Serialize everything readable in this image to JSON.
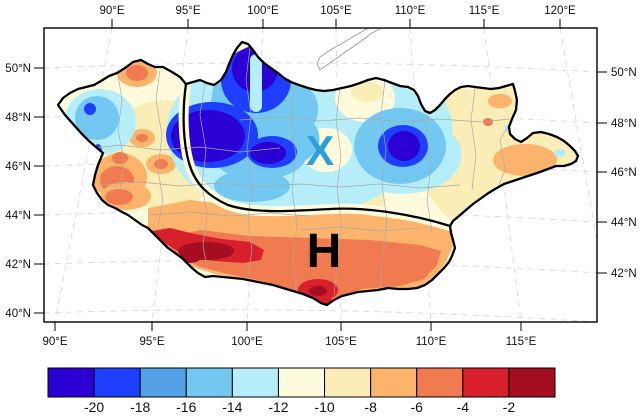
{
  "map": {
    "top_axis": [
      "90°E",
      "95°E",
      "100°E",
      "105°E",
      "110°E",
      "115°E",
      "120°E"
    ],
    "bottom_axis": [
      "90°E",
      "95°E",
      "100°E",
      "105°E",
      "110°E",
      "115°E"
    ],
    "left_axis": [
      "50°N",
      "48°N",
      "46°N",
      "44°N",
      "42°N",
      "40°N"
    ],
    "right_axis": [
      "50°N",
      "48°N",
      "46°N",
      "44°N",
      "42°N"
    ],
    "markers": [
      {
        "label": "X",
        "color": "#2D9FDB"
      },
      {
        "label": "H",
        "color": "#000000"
      }
    ]
  },
  "colorbar": {
    "tick_labels": [
      "-20",
      "-18",
      "-16",
      "-14",
      "-12",
      "-10",
      "-8",
      "-6",
      "-4",
      "-2"
    ],
    "colors": [
      "#2A00D5",
      "#1E3FFF",
      "#55A1E8",
      "#73C8F1",
      "#B5EEF9",
      "#FEFBDD",
      "#FAEDB5",
      "#FCB36B",
      "#F17B51",
      "#D7202C",
      "#A50D20"
    ]
  },
  "chart_data": {
    "type": "heatmap",
    "subtype": "filled-contour map of Mongolia with dashed lat/lon graticule",
    "title": "",
    "x_tick_labels_top": [
      "90°E",
      "95°E",
      "100°E",
      "105°E",
      "110°E",
      "115°E",
      "120°E"
    ],
    "x_tick_labels_bottom": [
      "90°E",
      "95°E",
      "100°E",
      "105°E",
      "110°E",
      "115°E"
    ],
    "y_tick_labels_left": [
      "50°N",
      "48°N",
      "46°N",
      "44°N",
      "42°N",
      "40°N"
    ],
    "y_tick_labels_right": [
      "50°N",
      "48°N",
      "46°N",
      "44°N",
      "42°N"
    ],
    "colorbar_levels": [
      -20,
      -18,
      -16,
      -14,
      -12,
      -10,
      -8,
      -6,
      -4,
      -2
    ],
    "colorbar_colors": [
      "#2A00D5",
      "#1E3FFF",
      "#55A1E8",
      "#73C8F1",
      "#B5EEF9",
      "#FEFBDD",
      "#FAEDB5",
      "#FCB36B",
      "#F17B51",
      "#D7202C",
      "#A50D20"
    ],
    "legend_position": "bottom",
    "grid": "dashed light-gray graticule",
    "annotations": [
      {
        "label": "X",
        "color": "#2D9FDB",
        "approx_lon": "104°E",
        "approx_lat": "46.5°N"
      },
      {
        "label": "H",
        "color": "#000000",
        "approx_lon": "104.5°E",
        "approx_lat": "42.5°N"
      }
    ],
    "features": [
      {
        "name": "front-line",
        "description": "thick black curve from northern border near 97°E sweeping south then east along ~44°N to the eastern border"
      },
      {
        "name": "cold-center",
        "approx": "97-101°E, 46-50°N",
        "level": "<= -20"
      },
      {
        "name": "cold-center-2",
        "approx": "107-109°E, 47-48°N",
        "level": "<= -20"
      },
      {
        "name": "cold-west-patch",
        "approx": "88-90°E, 48-49.5°N",
        "level": "-18 to -14"
      },
      {
        "name": "warm-band-south",
        "approx": "42-44°N across southern Mongolia",
        "level": "-8 to -4"
      },
      {
        "name": "warmest-core",
        "approx": "95-99°E, ~42.5°N",
        "level": "-4 to > -2"
      },
      {
        "name": "warm-patch-east",
        "approx": "114-117°E, 46-47°N",
        "level": "-8 to -6"
      },
      {
        "name": "neutral-east",
        "approx": "east of 111°E",
        "level": "-12 to -8"
      }
    ]
  }
}
